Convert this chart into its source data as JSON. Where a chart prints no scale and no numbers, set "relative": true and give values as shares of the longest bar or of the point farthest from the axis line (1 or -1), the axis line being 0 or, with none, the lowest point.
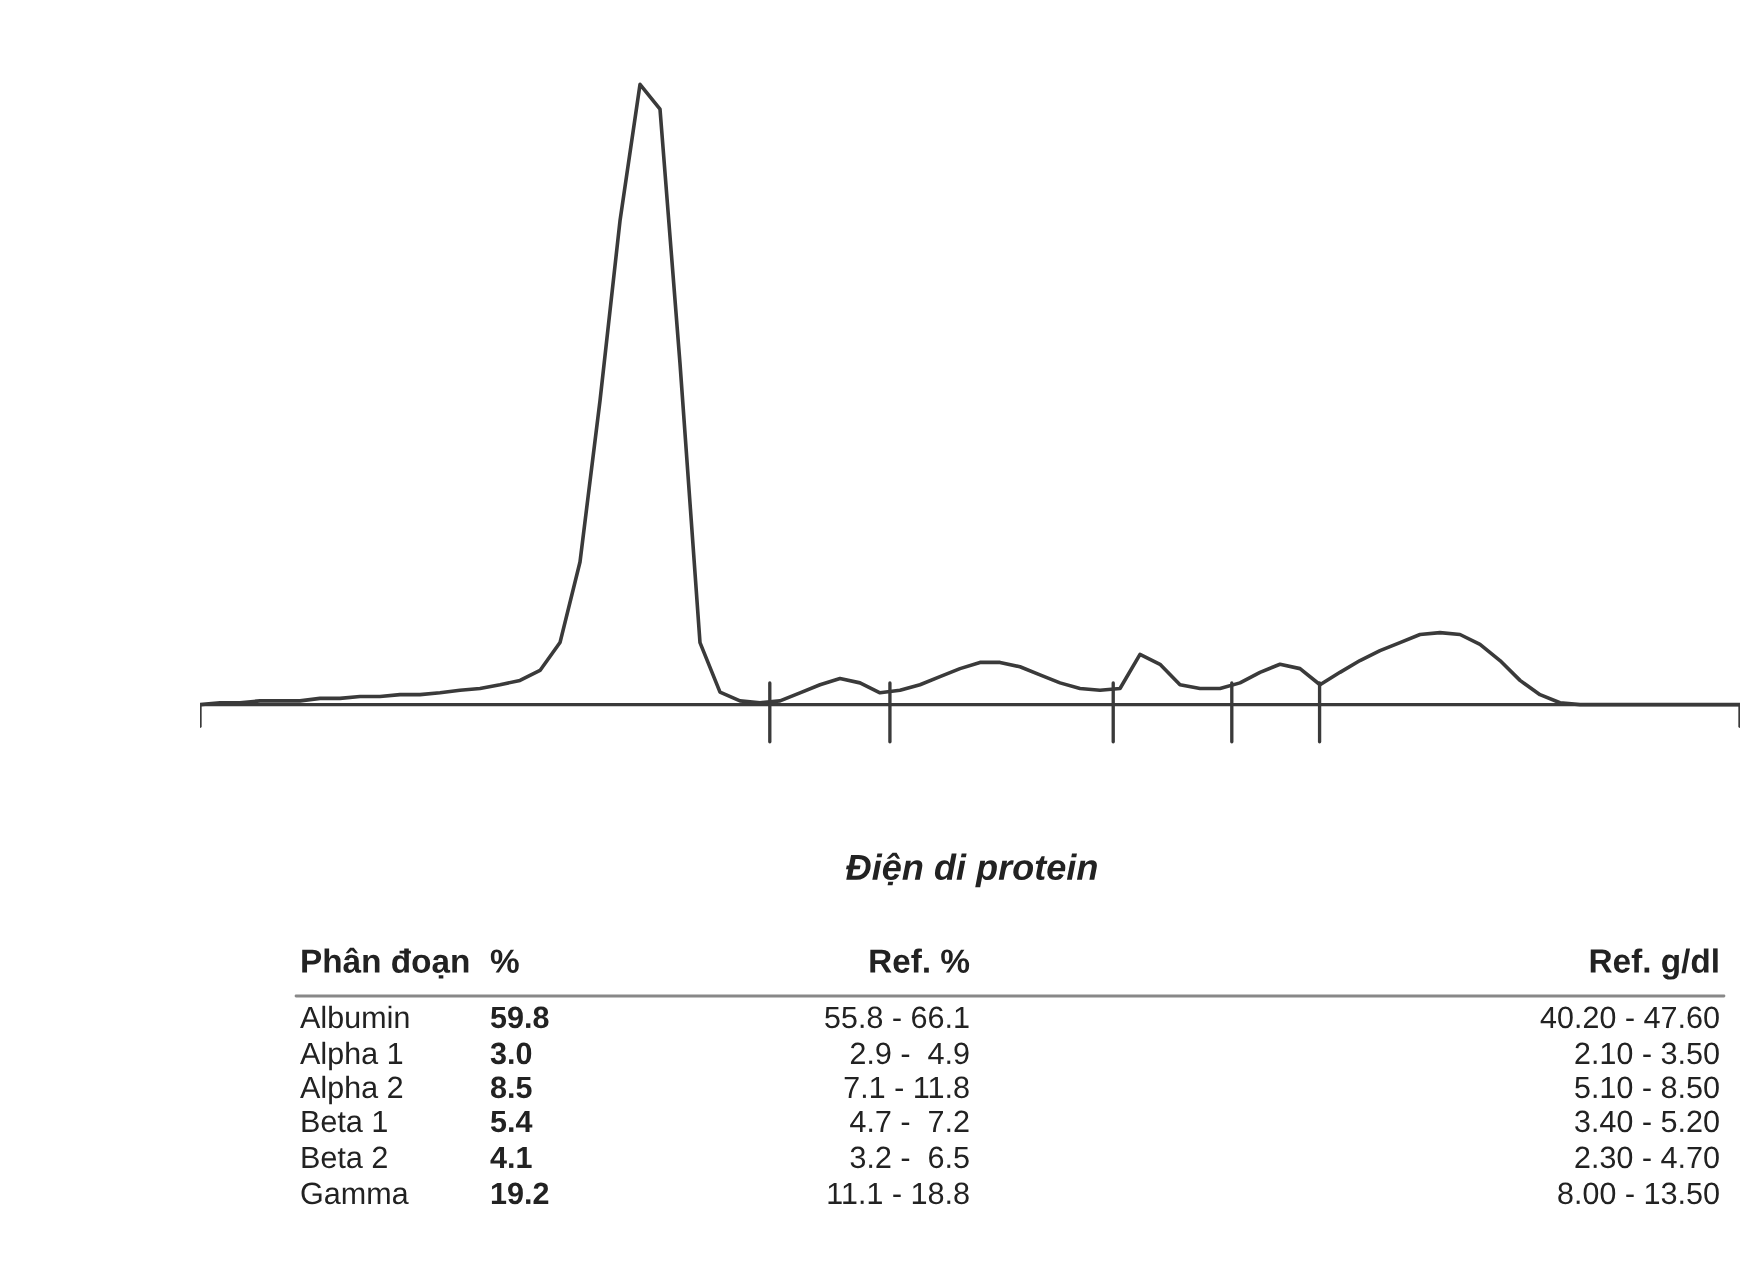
{
  "chart_data": {
    "type": "line",
    "relative": true,
    "title": "Điện di protein",
    "color": "#3a3a3a",
    "categories": [
      null,
      null,
      null,
      null,
      null,
      null,
      null,
      null,
      null,
      null,
      null,
      null,
      null,
      null,
      null,
      null,
      null,
      null,
      null,
      null,
      null,
      null,
      null,
      null,
      null,
      null,
      null,
      null,
      null,
      null,
      null,
      null,
      null,
      null,
      null,
      null,
      null,
      null,
      null,
      null,
      null,
      null,
      null,
      null,
      null,
      null,
      null,
      null,
      null,
      null,
      null,
      null,
      null,
      null,
      null,
      null,
      null,
      null,
      null,
      null,
      null,
      null,
      null,
      null,
      null,
      null,
      null,
      null,
      null,
      null,
      null,
      null,
      null,
      null,
      null,
      null,
      null,
      null
    ],
    "values": [
      0,
      0.003,
      0.003,
      0.006,
      0.006,
      0.006,
      0.01,
      0.01,
      0.013,
      0.013,
      0.016,
      0.016,
      0.019,
      0.023,
      0.026,
      0.032,
      0.039,
      0.055,
      0.1,
      0.23,
      0.49,
      0.78,
      1,
      0.96,
      0.55,
      0.1,
      0.02,
      0.006,
      0.003,
      0.006,
      0.019,
      0.032,
      0.042,
      0.035,
      0.019,
      0.023,
      0.032,
      0.045,
      0.058,
      0.068,
      0.068,
      0.061,
      0.048,
      0.035,
      0.026,
      0.023,
      0.026,
      0.081,
      0.065,
      0.032,
      0.026,
      0.026,
      0.035,
      0.052,
      0.065,
      0.058,
      0.032,
      0.052,
      0.071,
      0.087,
      0.1,
      0.113,
      0.116,
      0.113,
      0.097,
      0.071,
      0.039,
      0.016,
      0.003,
      0,
      0,
      0,
      0,
      0,
      0,
      0,
      0,
      0
    ],
    "annotations": [
      "Phân đoạn",
      "%",
      "Ref. %",
      "Ref. g/dl",
      "Albumin",
      "59.8",
      "55.8 - 66.1",
      "40.20 - 47.60",
      "Alpha 1",
      "3.0",
      "2.9 -  4.9",
      "2.10 - 3.50",
      "Alpha 2",
      "8.5",
      "7.1 - 11.8",
      "5.10 - 8.50",
      "Beta 1",
      "5.4",
      "4.7 -  7.2",
      "3.40 - 5.20",
      "Beta 2",
      "4.1",
      "3.2 -  6.5",
      "2.30 - 4.70",
      "Gamma",
      "19.2",
      "11.1 - 18.8",
      "8.00 - 13.50"
    ]
  }
}
